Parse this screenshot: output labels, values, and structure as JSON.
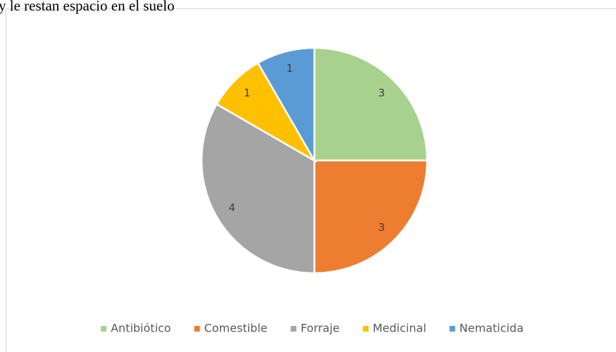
{
  "document_text": "y le restan espacio en el suelo",
  "chart_data": {
    "type": "pie",
    "categories": [
      "Antibiótico",
      "Comestible",
      "Forraje",
      "Medicinal",
      "Nematicida"
    ],
    "values": [
      3,
      3,
      4,
      1,
      1
    ],
    "colors": [
      "#a9d18e",
      "#ed7d31",
      "#a5a5a5",
      "#ffc000",
      "#5b9bd5"
    ],
    "legend": "bottom"
  }
}
